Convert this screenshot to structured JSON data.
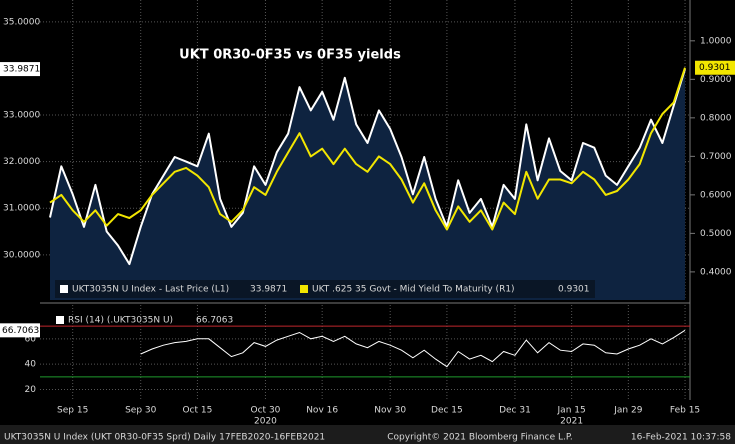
{
  "chart_data": [
    {
      "type": "line",
      "title": "UKT 0R30-0F35 vs 0F35 yields",
      "ylim": [
        29.03,
        35.47
      ],
      "yticks": [
        {
          "value": 30,
          "label": "30.0000"
        },
        {
          "value": 31,
          "label": "31.0000"
        },
        {
          "value": 32,
          "label": "32.0000"
        },
        {
          "value": 33,
          "label": "33.0000"
        },
        {
          "value": 35,
          "label": "35.0000"
        }
      ],
      "y2lim": [
        0.327,
        1.106
      ],
      "y2ticks": [
        {
          "value": 0.4,
          "label": "0.4000"
        },
        {
          "value": 0.5,
          "label": "0.5000"
        },
        {
          "value": 0.6,
          "label": "0.6000"
        },
        {
          "value": 0.7,
          "label": "0.7000"
        },
        {
          "value": 0.8,
          "label": "0.8000"
        },
        {
          "value": 0.9,
          "label": "0.9000"
        },
        {
          "value": 1.0,
          "label": "1.0000"
        }
      ],
      "grid": true,
      "series": [
        {
          "name": "UKT3035N U Index - Last Price (L1)",
          "color": "#ffffff",
          "fill": "#0e2340",
          "axis": "y",
          "values": [
            30.8,
            31.9,
            31.3,
            30.6,
            31.5,
            30.5,
            30.2,
            29.8,
            30.6,
            31.3,
            31.7,
            32.1,
            32.0,
            31.9,
            32.6,
            31.2,
            30.6,
            30.9,
            31.9,
            31.5,
            32.2,
            32.6,
            33.6,
            33.1,
            33.5,
            32.9,
            33.8,
            32.8,
            32.4,
            33.1,
            32.7,
            32.1,
            31.3,
            32.1,
            31.2,
            30.6,
            31.6,
            30.9,
            31.2,
            30.6,
            31.5,
            31.2,
            32.8,
            31.6,
            32.5,
            31.8,
            31.6,
            32.4,
            32.3,
            31.7,
            31.5,
            31.9,
            32.3,
            32.9,
            32.4,
            33.2,
            33.9871
          ]
        },
        {
          "name": "UKT .625 35 Govt - Mid Yield To Maturity (R1)",
          "color": "#f2e600",
          "axis": "y2",
          "values": [
            0.58,
            0.6,
            0.56,
            0.53,
            0.56,
            0.52,
            0.55,
            0.54,
            0.56,
            0.6,
            0.63,
            0.66,
            0.67,
            0.65,
            0.62,
            0.55,
            0.53,
            0.56,
            0.62,
            0.6,
            0.66,
            0.71,
            0.76,
            0.7,
            0.72,
            0.68,
            0.72,
            0.68,
            0.66,
            0.7,
            0.68,
            0.64,
            0.58,
            0.63,
            0.56,
            0.51,
            0.57,
            0.53,
            0.56,
            0.51,
            0.58,
            0.55,
            0.66,
            0.59,
            0.64,
            0.64,
            0.63,
            0.66,
            0.64,
            0.6,
            0.61,
            0.64,
            0.68,
            0.76,
            0.81,
            0.84,
            0.9301
          ]
        }
      ]
    },
    {
      "type": "line",
      "categories": [
        null,
        null,
        "Sep 15",
        null,
        null,
        null,
        null,
        null,
        "Sep 30",
        null,
        null,
        null,
        null,
        "Oct 15",
        null,
        null,
        null,
        null,
        null,
        "Oct 30",
        null,
        null,
        null,
        null,
        "Nov 16",
        null,
        null,
        null,
        null,
        null,
        "Nov 30",
        null,
        null,
        null,
        null,
        "Dec 15",
        null,
        null,
        null,
        null,
        null,
        "Dec 31",
        null,
        null,
        null,
        null,
        "Jan 15",
        null,
        null,
        null,
        null,
        "Jan 29",
        null,
        null,
        null,
        null,
        "Feb 15"
      ],
      "xticks2": [
        {
          "value": 19,
          "label": "2020"
        },
        {
          "value": 46,
          "label": "2021"
        }
      ],
      "ylim": [
        11.7,
        86.7
      ],
      "yticks": [
        20,
        40,
        60
      ],
      "grid": true,
      "levels": [
        {
          "value": 70,
          "color": "#c0262d"
        },
        {
          "value": 30,
          "color": "#1f9a2e"
        }
      ],
      "series": [
        {
          "name": "RSI (14) (.UKT3035N U)",
          "color": "#ffffff",
          "values": [
            null,
            null,
            null,
            null,
            null,
            null,
            null,
            null,
            48,
            52,
            55,
            57,
            58,
            60,
            60,
            53,
            46,
            49,
            57,
            54,
            59,
            62,
            65,
            60,
            62,
            58,
            62,
            56,
            53,
            58,
            55,
            51,
            45,
            51,
            44,
            38,
            50,
            44,
            47,
            42,
            50,
            47,
            59,
            49,
            57,
            51,
            50,
            56,
            55,
            49,
            48,
            52,
            55,
            60,
            56,
            61,
            66.7063
          ]
        }
      ]
    },
    {
      "type": "footer",
      "left": "UKT3035N U Index (UKT 0R30-0F35 Sprd)  Daily 17FEB2020-16FEB2021",
      "center": "Copyright© 2021 Bloomberg Finance L.P.",
      "right": "16-Feb-2021 10:37:58"
    }
  ]
}
